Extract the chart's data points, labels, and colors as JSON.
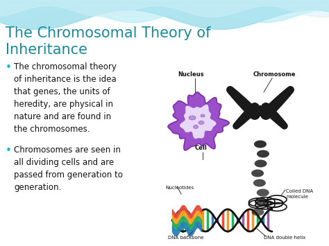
{
  "bg_color": "#ffffff",
  "wave_color_dark": "#7ecfdb",
  "wave_color_light": "#b8e8f0",
  "title_line1": "The Chromosomal Theory of",
  "title_line2": "Inheritance",
  "title_color": "#1a8a9a",
  "title_fontsize": 15,
  "bullet_color": "#111111",
  "bullet_dot_color": "#00bcd4",
  "bullet_fontsize": 8.5,
  "bullet1": "The chromosomal theory\nof inheritance is the idea\nthat genes, the units of\nheredity, are physical in\nnature and are found in\nthe chromosomes.",
  "bullet2": "Chromosomes are seen in\nall dividing cells and are\npassed from generation to\ngeneration.",
  "label_fontsize": 5.5,
  "label_color": "#111111"
}
